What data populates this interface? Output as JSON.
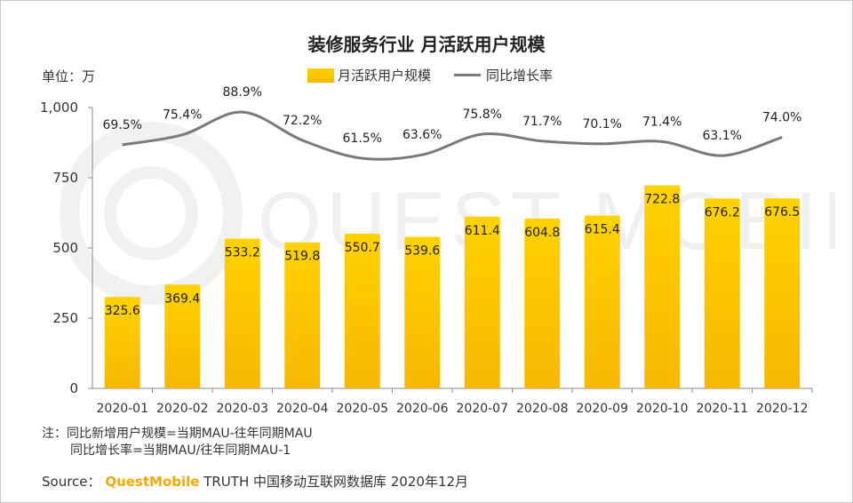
{
  "chart_data": {
    "type": "bar",
    "title": "装修服务行业 月活跃用户规模",
    "unit_label": "单位：万",
    "categories": [
      "2020-01",
      "2020-02",
      "2020-03",
      "2020-04",
      "2020-05",
      "2020-06",
      "2020-07",
      "2020-08",
      "2020-09",
      "2020-10",
      "2020-11",
      "2020-12"
    ],
    "series": [
      {
        "name": "月活跃用户规模",
        "type": "bar",
        "values": [
          325.6,
          369.4,
          533.2,
          519.8,
          550.7,
          539.6,
          611.4,
          604.8,
          615.4,
          722.8,
          676.2,
          676.5
        ],
        "labels": [
          "325.6",
          "369.4",
          "533.2",
          "519.8",
          "550.7",
          "539.6",
          "611.4",
          "604.8",
          "615.4",
          "722.8",
          "676.2",
          "676.5"
        ],
        "color": "#f6b800"
      },
      {
        "name": "同比增长率",
        "type": "line",
        "values": [
          69.5,
          75.4,
          88.9,
          72.2,
          61.5,
          63.6,
          75.8,
          71.7,
          70.1,
          71.4,
          63.1,
          74.0
        ],
        "labels": [
          "69.5%",
          "75.4%",
          "88.9%",
          "72.2%",
          "61.5%",
          "63.6%",
          "75.8%",
          "71.7%",
          "70.1%",
          "71.4%",
          "63.1%",
          "74.0%"
        ],
        "color": "#7a7a7a"
      }
    ],
    "y_axis": {
      "min": 0,
      "max": 1000,
      "ticks": [
        0,
        250,
        500,
        750,
        1000
      ],
      "tick_labels": [
        "0",
        "250",
        "500",
        "750",
        "1,000"
      ]
    },
    "grid": false,
    "legend_position": "top-center"
  },
  "notes": {
    "line1": "注：同比新增用户规模=当期MAU-往年同期MAU",
    "line2": "同比增长率=当期MAU/往年同期MAU-1"
  },
  "source": {
    "prefix": "Source：",
    "brand": "QuestMobile",
    "suffix": " TRUTH 中国移动互联网数据库 2020年12月"
  },
  "watermark_text": "QUEST MOBILE"
}
